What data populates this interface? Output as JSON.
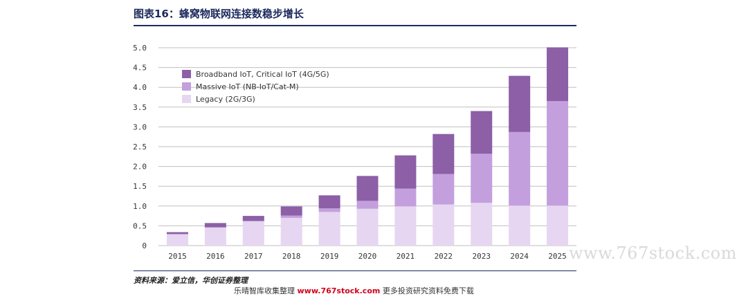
{
  "title": "图表16：蜂窝物联网连接数稳步增长",
  "source": "资料来源：爱立信，华创证券整理",
  "footer": {
    "prefix": "乐晴智库收集整理",
    "brand": "www.767stock.com",
    "suffix": "更多投资研究资料免费下载"
  },
  "watermark": "www.767stock.com",
  "colors": {
    "broadband": "#8c5fa6",
    "massive": "#c49fdd",
    "legacy": "#e6d6f1",
    "title": "#1b2a5c"
  },
  "chart_data": {
    "type": "bar",
    "stacked": true,
    "categories": [
      "2015",
      "2016",
      "2017",
      "2018",
      "2019",
      "2020",
      "2021",
      "2022",
      "2023",
      "2024",
      "2025"
    ],
    "series": [
      {
        "name": "Legacy (2G/3G)",
        "values": [
          0.29,
          0.46,
          0.62,
          0.7,
          0.85,
          0.93,
          0.99,
          1.04,
          1.08,
          1.01,
          1.01
        ]
      },
      {
        "name": "Massive IoT (NB-IoT/Cat-M)",
        "values": [
          0.0,
          0.0,
          0.0,
          0.06,
          0.09,
          0.2,
          0.45,
          0.77,
          1.24,
          1.86,
          2.64
        ]
      },
      {
        "name": "Broadband IoT, Critical IoT (4G/5G)",
        "values": [
          0.05,
          0.11,
          0.13,
          0.23,
          0.33,
          0.63,
          0.84,
          1.01,
          1.08,
          1.42,
          1.36
        ]
      }
    ],
    "ylim": [
      0,
      5.0
    ],
    "yticks": [
      "0",
      "0.5",
      "1.0",
      "1.5",
      "2.0",
      "2.5",
      "3.0",
      "3.5",
      "4.0",
      "4.5",
      "5.0"
    ],
    "grid": true,
    "legend_position": "top-left"
  }
}
